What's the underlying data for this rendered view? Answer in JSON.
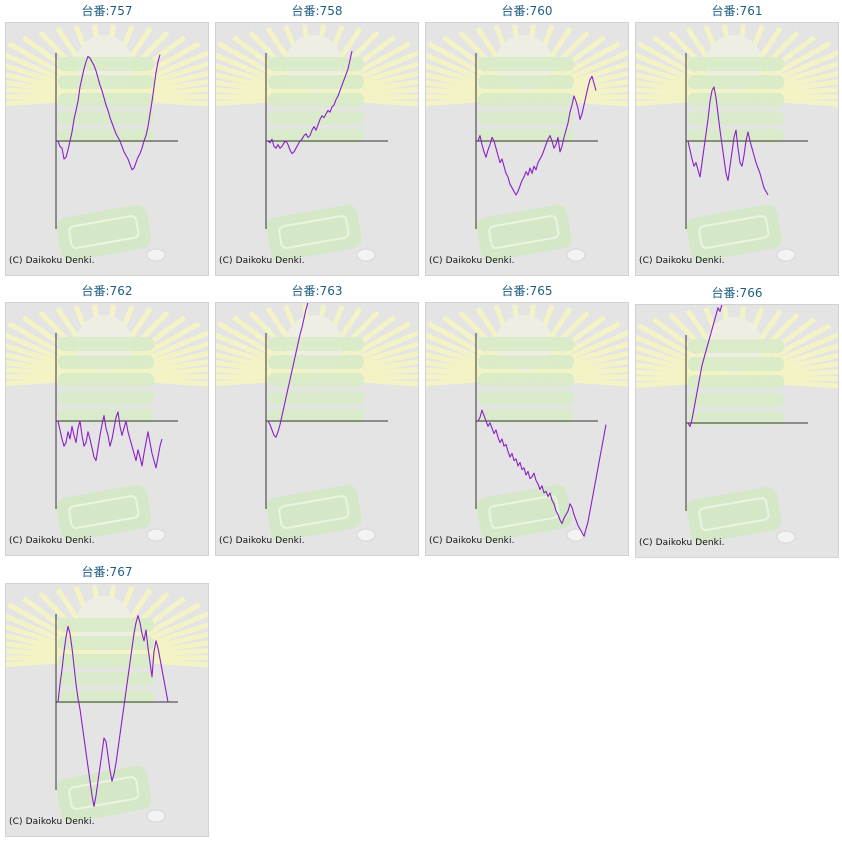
{
  "copyright": "(C) Daikoku Denki.",
  "colors": {
    "title": "#1f5f86",
    "line": "#8a1fc9",
    "axis": "#333333",
    "panel": "#e4e4e4"
  },
  "chart_data": [
    {
      "type": "line",
      "title": "台番:757",
      "values": [
        0,
        -3,
        -4,
        -10,
        -9,
        -5,
        0,
        5,
        12,
        17,
        22,
        30,
        35,
        40,
        44,
        47,
        46,
        44,
        42,
        39,
        35,
        31,
        28,
        24,
        20,
        17,
        13,
        10,
        7,
        4,
        2,
        0,
        -3,
        -6,
        -8,
        -10,
        -13,
        -16,
        -15,
        -12,
        -9,
        -7,
        -4,
        0,
        3,
        8,
        15,
        22,
        30,
        38,
        44,
        48
      ]
    },
    {
      "type": "line",
      "title": "台番:758",
      "values": [
        0,
        -1,
        1,
        -3,
        -4,
        -2,
        -4,
        -3,
        -1,
        0,
        -2,
        -5,
        -7,
        -6,
        -4,
        -2,
        0,
        1,
        3,
        4,
        2,
        3,
        6,
        8,
        6,
        9,
        12,
        14,
        13,
        15,
        17,
        16,
        19,
        20,
        23,
        25,
        28,
        31,
        34,
        37,
        40,
        45,
        50
      ]
    },
    {
      "type": "line",
      "title": "台番:760",
      "values": [
        0,
        3,
        -2,
        -6,
        -9,
        -5,
        -2,
        2,
        0,
        -4,
        -8,
        -12,
        -10,
        -14,
        -18,
        -20,
        -24,
        -26,
        -28,
        -30,
        -28,
        -25,
        -22,
        -20,
        -17,
        -19,
        -15,
        -18,
        -14,
        -16,
        -12,
        -10,
        -8,
        -5,
        -2,
        1,
        3,
        0,
        -4,
        -2,
        2,
        -6,
        -3,
        2,
        6,
        10,
        16,
        20,
        25,
        22,
        18,
        12,
        15,
        20,
        25,
        30,
        34,
        36,
        32,
        28
      ]
    },
    {
      "type": "line",
      "title": "台番:761",
      "values": [
        0,
        -5,
        -10,
        -14,
        -12,
        -16,
        -20,
        -12,
        -4,
        4,
        12,
        22,
        28,
        30,
        24,
        15,
        6,
        -2,
        -10,
        -18,
        -22,
        -14,
        -6,
        2,
        6,
        -4,
        -12,
        -14,
        -8,
        0,
        5,
        0,
        -4,
        -8,
        -12,
        -15,
        -18,
        -22,
        -26,
        -28,
        -30
      ]
    },
    {
      "type": "line",
      "title": "台番:762",
      "values": [
        0,
        -5,
        -10,
        -14,
        -12,
        -6,
        -10,
        -3,
        -8,
        -12,
        -4,
        0,
        -8,
        -14,
        -12,
        -6,
        -10,
        -15,
        -20,
        -22,
        -15,
        -8,
        -2,
        3,
        -4,
        -8,
        -14,
        -10,
        -4,
        2,
        5,
        -3,
        -8,
        -4,
        0,
        -6,
        -10,
        -14,
        -18,
        -22,
        -16,
        -20,
        -25,
        -18,
        -12,
        -6,
        -12,
        -18,
        -22,
        -26,
        -20,
        -14,
        -10
      ]
    },
    {
      "type": "line",
      "title": "台番:763",
      "values": [
        0,
        -2,
        -5,
        -8,
        -9,
        -6,
        -2,
        3,
        8,
        13,
        18,
        23,
        28,
        33,
        38,
        43,
        48,
        52,
        57,
        62,
        66,
        70,
        73,
        76,
        78,
        77,
        75,
        73
      ]
    },
    {
      "type": "line",
      "title": "台番:765",
      "values": [
        0,
        2,
        6,
        3,
        0,
        -3,
        -1,
        -4,
        -7,
        -5,
        -9,
        -12,
        -10,
        -14,
        -13,
        -17,
        -20,
        -18,
        -22,
        -21,
        -25,
        -23,
        -27,
        -26,
        -30,
        -28,
        -32,
        -31,
        -29,
        -33,
        -35,
        -38,
        -36,
        -40,
        -39,
        -42,
        -40,
        -44,
        -46,
        -50,
        -52,
        -55,
        -57,
        -54,
        -52,
        -50,
        -46,
        -48,
        -52,
        -55,
        -58,
        -60,
        -62,
        -64,
        -60,
        -56,
        -50,
        -44,
        -38,
        -32,
        -26,
        -20,
        -14,
        -8,
        -2
      ]
    },
    {
      "type": "line",
      "title": "台番:766",
      "values": [
        0,
        -2,
        2,
        8,
        14,
        20,
        26,
        32,
        36,
        40,
        44,
        48,
        52,
        56,
        60,
        64,
        62,
        66,
        70,
        68,
        72,
        74,
        76,
        78,
        80,
        82,
        84,
        86,
        88,
        90
      ]
    },
    {
      "type": "line",
      "title": "台番:767",
      "values": [
        0,
        10,
        18,
        28,
        36,
        42,
        38,
        30,
        20,
        10,
        2,
        -4,
        -12,
        -20,
        -28,
        -36,
        -44,
        -52,
        -58,
        -52,
        -44,
        -36,
        -28,
        -20,
        -22,
        -30,
        -38,
        -44,
        -40,
        -34,
        -26,
        -18,
        -10,
        -2,
        6,
        14,
        22,
        30,
        38,
        44,
        48,
        44,
        38,
        34,
        40,
        30,
        22,
        14,
        28,
        34,
        30,
        24,
        18,
        12,
        6,
        0
      ]
    }
  ]
}
